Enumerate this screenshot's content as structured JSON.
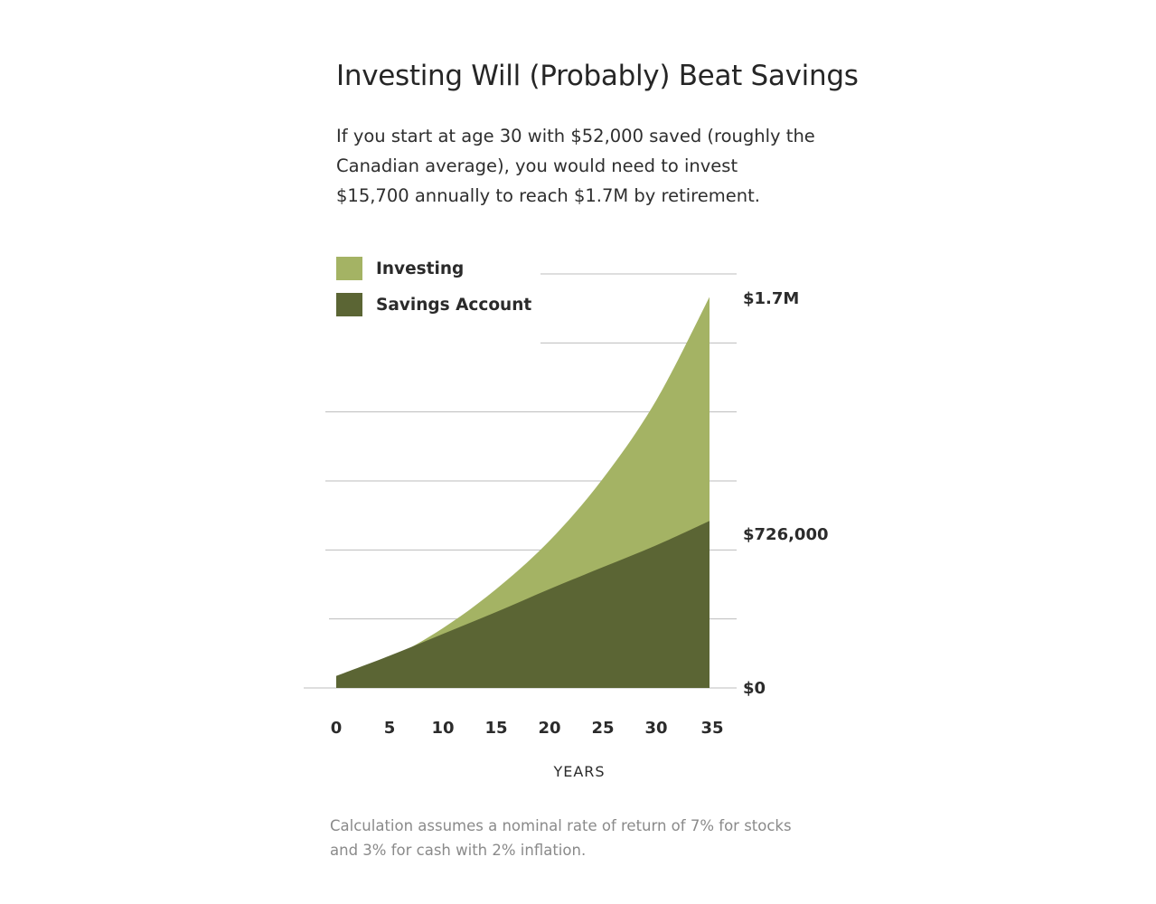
{
  "title": "Investing Will (Probably) Beat Savings",
  "subtitle": "If you start at age 30 with $52,000 saved (roughly the Canadian average), you would need to invest $15,700 annually to reach $1.7M by retirement.",
  "footnote": "Calculation assumes a nominal rate of return of 7% for stocks and 3% for cash with 2% inflation.",
  "colors": {
    "investing": "#a4b364",
    "savings": "#5b6534",
    "grid": "#bdbdbd",
    "text": "#2b2b2b"
  },
  "chart_data": {
    "type": "area",
    "title": "Investing Will (Probably) Beat Savings",
    "xlabel": "YEARS",
    "ylabel": "",
    "x": [
      0,
      5,
      10,
      15,
      20,
      25,
      30,
      35
    ],
    "xlim": [
      0,
      35
    ],
    "ylim": [
      0,
      1800000
    ],
    "x_tick_labels": [
      "0",
      "5",
      "10",
      "15",
      "20",
      "25",
      "30",
      "35"
    ],
    "y_value_labels": [
      {
        "value": 1700000,
        "label": "$1.7M"
      },
      {
        "value": 726000,
        "label": "$726,000"
      },
      {
        "value": 0,
        "label": "$0"
      }
    ],
    "grid": true,
    "legend_position": "top-left",
    "series": [
      {
        "name": "Investing",
        "color": "#a4b364",
        "values": [
          52000,
          130000,
          260000,
          430000,
          640000,
          910000,
          1250000,
          1700000
        ]
      },
      {
        "name": "Savings Account",
        "color": "#5b6534",
        "values": [
          52000,
          140000,
          235000,
          330000,
          430000,
          525000,
          620000,
          726000
        ]
      }
    ]
  }
}
